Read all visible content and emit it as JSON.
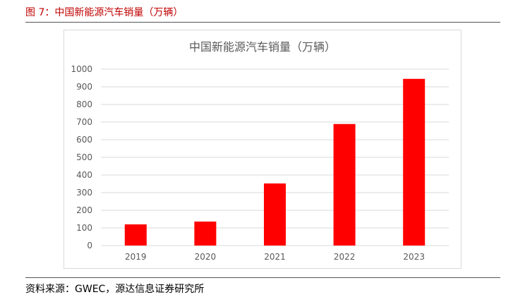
{
  "caption": "图 7：中国新能源汽车销量（万辆）",
  "source": "资料来源：GWEC，源达信息证券研究所",
  "colors": {
    "caption": "#c00000",
    "bar": "#ff0000",
    "grid": "#d9d9d9",
    "text": "#595959"
  },
  "chart_data": {
    "type": "bar",
    "title": "中国新能源汽车销量（万辆）",
    "xlabel": "",
    "ylabel": "",
    "categories": [
      "2019",
      "2020",
      "2021",
      "2022",
      "2023"
    ],
    "values": [
      120,
      136,
      352,
      689,
      945
    ],
    "ylim": [
      0,
      1000
    ],
    "yticks": [
      "0",
      "100",
      "200",
      "300",
      "400",
      "500",
      "600",
      "700",
      "800",
      "900",
      "1000"
    ],
    "grid": true,
    "legend": false
  }
}
